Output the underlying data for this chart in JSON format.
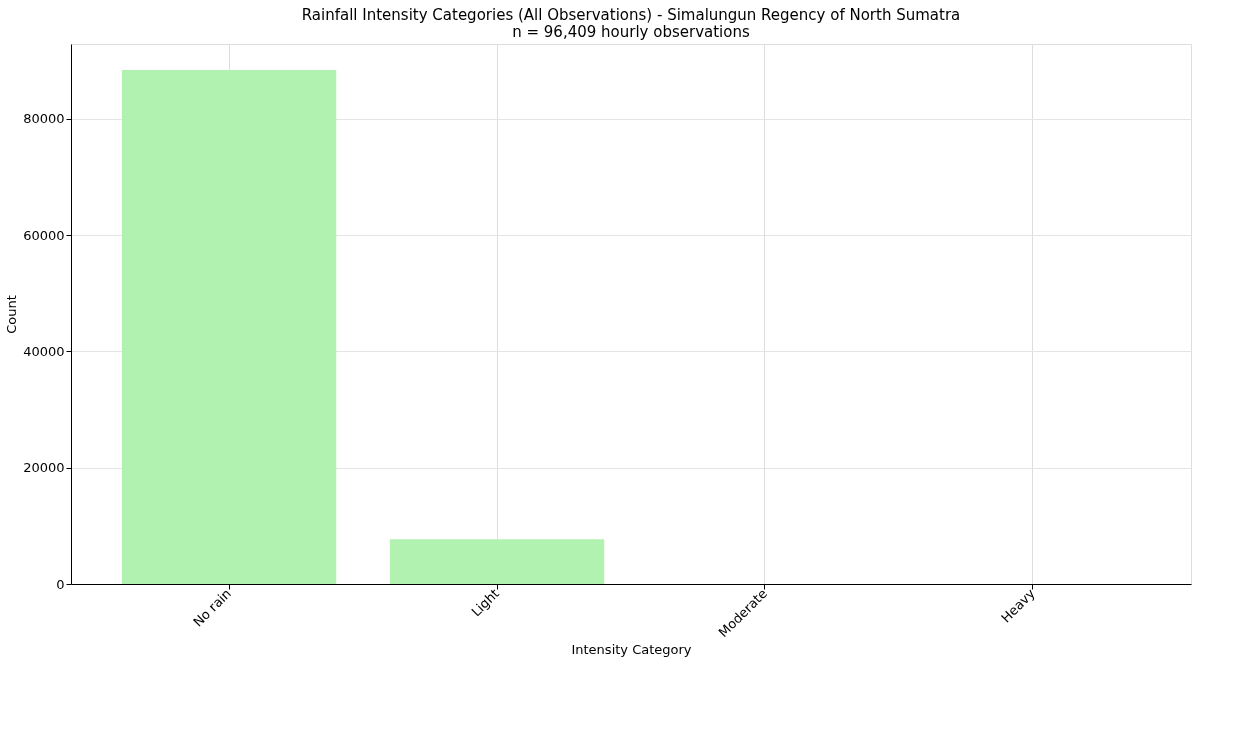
{
  "chart_data": {
    "type": "bar",
    "title": "Rainfall Intensity Categories (All Observations) - Simalungun Regency of North Sumatra",
    "subtitle": "n = 96,409 hourly observations",
    "xlabel": "Intensity Category",
    "ylabel": "Count",
    "categories": [
      "No rain",
      "Light",
      "Moderate",
      "Heavy"
    ],
    "values": [
      88400,
      7700,
      null,
      null
    ],
    "color": "#b2f2b1",
    "ylim": [
      0,
      92860
    ],
    "yticks": [
      0,
      20000,
      40000,
      60000,
      80000
    ],
    "grid": true
  }
}
